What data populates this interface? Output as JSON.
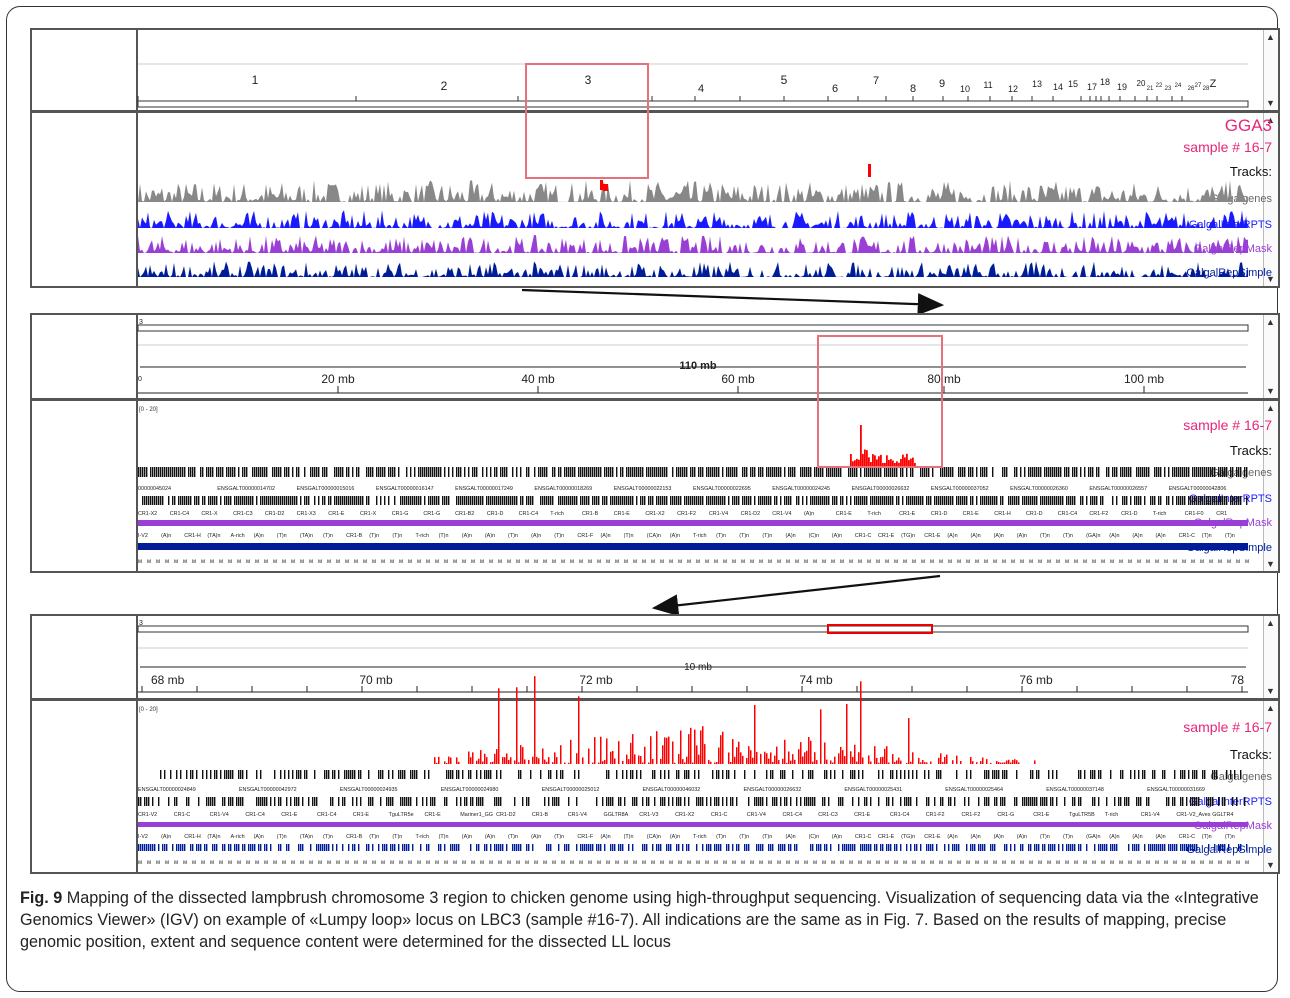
{
  "panel1": {
    "title": "GGA3",
    "sample": "sample # 16-7",
    "tracks_label": "Tracks:",
    "chromosomes": [
      "1",
      "2",
      "3",
      "4",
      "5",
      "6",
      "7",
      "8",
      "9",
      "10",
      "11",
      "12",
      "13",
      "14",
      "15",
      "17",
      "18",
      "19",
      "20",
      "21",
      "22",
      "23",
      "24",
      "26",
      "27",
      "28",
      "Z"
    ],
    "track_names": [
      "Galgalgenes",
      "GalgalInterRPTS",
      "GalgalRepMask",
      "GalgalRepSimple"
    ]
  },
  "panel2": {
    "chrom": "3",
    "span": "110 mb",
    "scale_start": "0",
    "ticks": [
      "20 mb",
      "40 mb",
      "60 mb",
      "80 mb",
      "100 mb"
    ],
    "sample": "sample # 16-7",
    "tracks_label": "Tracks:",
    "data_range": "[0 - 20]",
    "track_names": [
      "Galgalgenes",
      "GalgalInterRPTS",
      "GalgalRepMask",
      "GalgalRepSimple"
    ],
    "gene_ids": [
      "00000045024",
      "ENSGALT00000014702",
      "ENSGALT00000015016",
      "ENSGALT00000016147",
      "ENSGALT00000017249",
      "ENSGALT00000018269",
      "ENSGALT00000022153",
      "ENSGALT00000022695",
      "ENSGALT00000024245",
      "ENSGALT00000026632",
      "ENSGALT00000037052",
      "ENSGALT00000026360",
      "ENSGALT00000026557",
      "ENSGALT00000042806"
    ],
    "repeat_names": [
      "CR1-X2",
      "CR1-C4",
      "CR1-X",
      "CR1-C3",
      "CR1-D2",
      "CR1-X3",
      "CR1-E",
      "CR1-X",
      "CR1-G",
      "CR1-G",
      "CR1-B2",
      "CR1-D",
      "CR1-C4",
      "T-rich",
      "CR1-B",
      "CR1-E",
      "CR1-X2",
      "CR1-F2",
      "CR1-V4",
      "CR1-D2",
      "CR1-V4",
      "(A)n",
      "CR1-E",
      "T-rich",
      "CR1-E",
      "CR1-D",
      "CR1-E",
      "CR1-H",
      "CR1-D",
      "CR1-C4",
      "CR1-F2",
      "CR1-D",
      "T-rich",
      "CR1-F0",
      "CR1"
    ],
    "simple_names": [
      "I-V2",
      "(A)n",
      "CR1-H",
      "(TA)n",
      "A-rich",
      "(A)n",
      "(T)n",
      "(TA)n",
      "(T)n",
      "CR1-B",
      "(T)n",
      "(T)n",
      "T-rich",
      "(T)n",
      "(A)n",
      "(A)n",
      "(T)n",
      "(A)n",
      "(T)n",
      "CR1-F",
      "(A)n",
      "(T)n",
      "(CA)n",
      "(A)n",
      "T-rich",
      "(T)n",
      "(T)n",
      "(T)n",
      "(A)n",
      "(C)n",
      "(A)n",
      "CR1-C",
      "CR1-E",
      "(TG)n",
      "CR1-E",
      "(A)n",
      "(A)n",
      "(A)n",
      "(A)n",
      "(T)n",
      "(T)n",
      "(GA)n",
      "(A)n",
      "(A)n",
      "(A)n",
      "CR1-C",
      "(T)n",
      "(T)n"
    ]
  },
  "panel3": {
    "chrom": "3",
    "span": "10 mb",
    "ticks": [
      "68 mb",
      "70 mb",
      "72 mb",
      "74 mb",
      "76 mb",
      "78"
    ],
    "sample": "sample # 16-7",
    "tracks_label": "Tracks:",
    "data_range": "[0 - 20]",
    "track_names": [
      "Galgalgenes",
      "GalgalInterRPTS",
      "GalgalRepMask",
      "GalgalRepSimple"
    ],
    "gene_ids": [
      "ENSGALT00000024849",
      "ENSGALT00000042972",
      "ENSGALT00000024935",
      "ENSGALT00000024980",
      "ENSGALT00000025012",
      "ENSGALT00000046032",
      "ENSGALT00000026632",
      "ENSGALT00000025431",
      "ENSGALT00000025464",
      "ENSGALT00000037148",
      "ENSGALT00000031669"
    ],
    "repeat_names": [
      "CR1-V2",
      "CR1-C",
      "CR1-V4",
      "CR1-C4",
      "CR1-E",
      "CR1-C4",
      "CR1-E",
      "TguLTR5e",
      "CR1-E",
      "Mariner1_GG",
      "CR1-D2",
      "CR1-B",
      "CR1-V4",
      "GGLTR8A",
      "CR1-V3",
      "CR1-X2",
      "CR1-C",
      "CR1-V4",
      "CR1-C4",
      "CR1-C3",
      "CR1-E",
      "CR1-C4",
      "CR1-F2",
      "CR1-F2",
      "CR1-G",
      "CR1-E",
      "TguLTR5B",
      "T-rich",
      "CR1-V4",
      "CR1-V2_Aves",
      "GGLTR4"
    ]
  },
  "caption": {
    "label": "Fig. 9",
    "text": " Mapping of the dissected lampbrush chromosome 3 region to chicken genome using high-throughput sequencing. Visualization of sequencing data via the «Integrative Genomics Viewer» (IGV) on example of «Lumpy loop» locus on LBC3 (sample #16-7). All indications are the same as in Fig. 7. Based on the results of mapping, precise genomic position, extent and sequence content were determined for the dissected LL locus"
  },
  "colors": {
    "genes": "#888888",
    "interrpts": "#1a1aff",
    "repmask": "#9a3fd6",
    "repsimple": "#001d99",
    "reads": "#ff0000",
    "highlight": "#e8707a"
  }
}
